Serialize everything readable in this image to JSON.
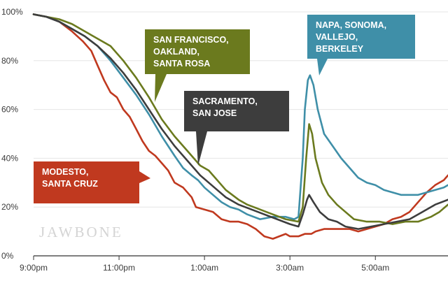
{
  "watermark": "JAWBONE",
  "chart_data": {
    "type": "line",
    "title": "",
    "xlabel": "",
    "ylabel": "",
    "ylim": [
      0,
      100
    ],
    "xlim": [
      0,
      9.7
    ],
    "x_tick_labels": [
      {
        "x": 0,
        "label": "9:00pm"
      },
      {
        "x": 2,
        "label": "11:00pm"
      },
      {
        "x": 4,
        "label": "1:00am"
      },
      {
        "x": 6,
        "label": "3:00am"
      },
      {
        "x": 8,
        "label": "5:00am"
      }
    ],
    "y_tick_labels": [
      {
        "y": 0,
        "label": "0%"
      },
      {
        "y": 20,
        "label": "20%"
      },
      {
        "y": 40,
        "label": "40%"
      },
      {
        "y": 60,
        "label": "60%"
      },
      {
        "y": 80,
        "label": "80%"
      },
      {
        "y": 100,
        "label": "100%"
      }
    ],
    "grid": true,
    "legend": "callout labels",
    "series": [
      {
        "name": "MODESTO, SANTA CRUZ",
        "color": "#c0391f",
        "points": [
          [
            0,
            99
          ],
          [
            0.3,
            98
          ],
          [
            0.6,
            96
          ],
          [
            0.9,
            92
          ],
          [
            1.15,
            88
          ],
          [
            1.35,
            84
          ],
          [
            1.5,
            78
          ],
          [
            1.65,
            72
          ],
          [
            1.8,
            67
          ],
          [
            1.95,
            65
          ],
          [
            2.1,
            60
          ],
          [
            2.25,
            57
          ],
          [
            2.4,
            52
          ],
          [
            2.55,
            47
          ],
          [
            2.7,
            43
          ],
          [
            2.85,
            41
          ],
          [
            3.0,
            38
          ],
          [
            3.15,
            35
          ],
          [
            3.3,
            30
          ],
          [
            3.5,
            28
          ],
          [
            3.7,
            24
          ],
          [
            3.8,
            20
          ],
          [
            4.0,
            19
          ],
          [
            4.2,
            18
          ],
          [
            4.4,
            15
          ],
          [
            4.6,
            14
          ],
          [
            4.8,
            14
          ],
          [
            5.0,
            13
          ],
          [
            5.2,
            11
          ],
          [
            5.4,
            8
          ],
          [
            5.6,
            7
          ],
          [
            5.75,
            8
          ],
          [
            5.9,
            9
          ],
          [
            6.0,
            8
          ],
          [
            6.2,
            8
          ],
          [
            6.35,
            9
          ],
          [
            6.5,
            9
          ],
          [
            6.6,
            10
          ],
          [
            6.8,
            11
          ],
          [
            7.0,
            11
          ],
          [
            7.2,
            11
          ],
          [
            7.4,
            11
          ],
          [
            7.6,
            10
          ],
          [
            7.8,
            11
          ],
          [
            8.0,
            12
          ],
          [
            8.2,
            13
          ],
          [
            8.4,
            15
          ],
          [
            8.6,
            16
          ],
          [
            8.8,
            18
          ],
          [
            9.0,
            22
          ],
          [
            9.2,
            26
          ],
          [
            9.4,
            29
          ],
          [
            9.6,
            31
          ],
          [
            9.7,
            33
          ]
        ]
      },
      {
        "name": "NAPA, SONOMA, VALLEJO, BERKELEY",
        "color": "#3f8fa8",
        "points": [
          [
            0,
            99
          ],
          [
            0.3,
            98
          ],
          [
            0.6,
            96
          ],
          [
            0.9,
            93
          ],
          [
            1.2,
            90
          ],
          [
            1.5,
            86
          ],
          [
            1.8,
            80
          ],
          [
            2.1,
            73
          ],
          [
            2.4,
            66
          ],
          [
            2.7,
            58
          ],
          [
            3.0,
            49
          ],
          [
            3.3,
            41
          ],
          [
            3.5,
            36
          ],
          [
            3.7,
            33
          ],
          [
            3.85,
            31
          ],
          [
            4.0,
            28
          ],
          [
            4.2,
            25
          ],
          [
            4.4,
            22
          ],
          [
            4.6,
            20
          ],
          [
            4.8,
            19
          ],
          [
            5.0,
            17
          ],
          [
            5.3,
            15
          ],
          [
            5.6,
            16
          ],
          [
            5.9,
            16
          ],
          [
            6.1,
            15
          ],
          [
            6.2,
            16
          ],
          [
            6.3,
            40
          ],
          [
            6.35,
            60
          ],
          [
            6.42,
            72
          ],
          [
            6.47,
            74
          ],
          [
            6.55,
            70
          ],
          [
            6.65,
            60
          ],
          [
            6.8,
            50
          ],
          [
            7.0,
            45
          ],
          [
            7.2,
            40
          ],
          [
            7.4,
            36
          ],
          [
            7.6,
            32
          ],
          [
            7.8,
            30
          ],
          [
            8.0,
            29
          ],
          [
            8.2,
            27
          ],
          [
            8.4,
            26
          ],
          [
            8.6,
            25
          ],
          [
            8.8,
            25
          ],
          [
            9.0,
            25
          ],
          [
            9.2,
            26
          ],
          [
            9.4,
            27
          ],
          [
            9.6,
            28
          ],
          [
            9.7,
            29
          ]
        ]
      },
      {
        "name": "SAN FRANCISCO, OAKLAND, SANTA ROSA",
        "color": "#6b7a1e",
        "points": [
          [
            0,
            99
          ],
          [
            0.3,
            98
          ],
          [
            0.6,
            97
          ],
          [
            0.9,
            95
          ],
          [
            1.2,
            92
          ],
          [
            1.5,
            89
          ],
          [
            1.8,
            86
          ],
          [
            2.1,
            80
          ],
          [
            2.4,
            73
          ],
          [
            2.7,
            65
          ],
          [
            3.0,
            56
          ],
          [
            3.3,
            49
          ],
          [
            3.6,
            43
          ],
          [
            3.9,
            37
          ],
          [
            4.1,
            35
          ],
          [
            4.3,
            31
          ],
          [
            4.5,
            27
          ],
          [
            4.8,
            23
          ],
          [
            5.0,
            21
          ],
          [
            5.3,
            19
          ],
          [
            5.6,
            17
          ],
          [
            5.9,
            15
          ],
          [
            6.2,
            14
          ],
          [
            6.3,
            20
          ],
          [
            6.38,
            40
          ],
          [
            6.45,
            54
          ],
          [
            6.52,
            50
          ],
          [
            6.6,
            40
          ],
          [
            6.75,
            30
          ],
          [
            6.9,
            25
          ],
          [
            7.1,
            21
          ],
          [
            7.3,
            18
          ],
          [
            7.5,
            15
          ],
          [
            7.8,
            14
          ],
          [
            8.1,
            14
          ],
          [
            8.4,
            13
          ],
          [
            8.7,
            14
          ],
          [
            9.0,
            14
          ],
          [
            9.3,
            16
          ],
          [
            9.5,
            18
          ],
          [
            9.7,
            21
          ]
        ]
      },
      {
        "name": "SACRAMENTO, SAN JOSE",
        "color": "#3d3d3d",
        "points": [
          [
            0,
            99
          ],
          [
            0.3,
            98
          ],
          [
            0.6,
            96
          ],
          [
            0.9,
            93
          ],
          [
            1.2,
            90
          ],
          [
            1.5,
            86
          ],
          [
            1.8,
            81
          ],
          [
            2.1,
            75
          ],
          [
            2.4,
            68
          ],
          [
            2.7,
            60
          ],
          [
            3.0,
            52
          ],
          [
            3.3,
            45
          ],
          [
            3.6,
            39
          ],
          [
            3.9,
            33
          ],
          [
            4.1,
            30
          ],
          [
            4.3,
            27
          ],
          [
            4.5,
            24
          ],
          [
            4.8,
            21
          ],
          [
            5.1,
            19
          ],
          [
            5.4,
            17
          ],
          [
            5.7,
            15
          ],
          [
            6.0,
            13
          ],
          [
            6.2,
            12
          ],
          [
            6.3,
            17
          ],
          [
            6.4,
            23
          ],
          [
            6.45,
            25
          ],
          [
            6.55,
            22
          ],
          [
            6.7,
            18
          ],
          [
            6.9,
            15
          ],
          [
            7.1,
            14
          ],
          [
            7.3,
            12
          ],
          [
            7.6,
            11
          ],
          [
            7.9,
            12
          ],
          [
            8.2,
            13
          ],
          [
            8.5,
            14
          ],
          [
            8.8,
            15
          ],
          [
            9.1,
            18
          ],
          [
            9.4,
            21
          ],
          [
            9.7,
            23
          ]
        ]
      }
    ],
    "callouts": [
      {
        "lines": [
          "SAN FRANCISCO,",
          "OAKLAND,",
          "SANTA ROSA"
        ],
        "color": "#6b7a1e"
      },
      {
        "lines": [
          "NAPA, SONOMA,",
          "VALLEJO,",
          "BERKELEY"
        ],
        "color": "#3f8fa8"
      },
      {
        "lines": [
          "SACRAMENTO,",
          "SAN JOSE"
        ],
        "color": "#3d3d3d"
      },
      {
        "lines": [
          "MODESTO,",
          "SANTA CRUZ"
        ],
        "color": "#c0391f"
      }
    ]
  }
}
